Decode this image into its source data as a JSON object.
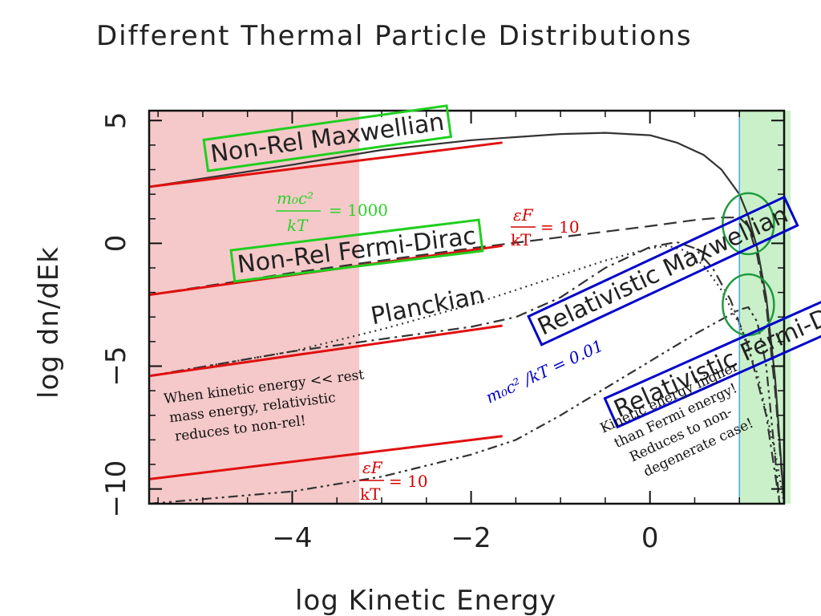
{
  "chart_data": {
    "type": "line",
    "title": "Different Thermal Particle Distributions",
    "xlabel": "log Kinetic Energy",
    "ylabel": "log dn/dEk",
    "xlim": [
      -5.6,
      1.5
    ],
    "ylim": [
      -10.6,
      5.4
    ],
    "x_ticks": [
      -4,
      -2,
      0
    ],
    "x_tick_labels": [
      "−4",
      "−2",
      "0"
    ],
    "y_ticks": [
      5,
      0,
      -5,
      -10
    ],
    "y_tick_labels": [
      "5",
      "0",
      "−5",
      "−10"
    ],
    "grid": false,
    "series": [
      {
        "name": "Non-Rel Maxwellian",
        "style": "solid",
        "x": [
          -5.6,
          -4,
          -3,
          -2,
          -1,
          -0.5,
          0,
          0.3,
          0.6,
          0.8,
          1.0,
          1.1,
          1.2,
          1.3,
          1.4,
          1.5
        ],
        "y": [
          2.3,
          3.2,
          3.8,
          4.2,
          4.45,
          4.5,
          4.4,
          4.1,
          3.6,
          3.0,
          2.0,
          1.1,
          -0.2,
          -2.2,
          -5.5,
          -10.6
        ]
      },
      {
        "name": "Non-Rel Fermi-Dirac",
        "style": "dashed",
        "x": [
          -5.6,
          -4,
          -3,
          -2,
          -1,
          0,
          0.5,
          0.8,
          1.0,
          1.1,
          1.2,
          1.3,
          1.4,
          1.5
        ],
        "y": [
          -2.1,
          -1.2,
          -0.7,
          -0.2,
          0.25,
          0.7,
          0.95,
          1.05,
          1.05,
          0.7,
          -0.5,
          -2.5,
          -6,
          -10.6
        ]
      },
      {
        "name": "Planckian",
        "style": "dotted",
        "x": [
          -5.6,
          -4,
          -3,
          -2,
          -1,
          -0.5,
          0,
          0.2,
          0.4,
          0.6,
          0.8,
          1.0,
          1.2,
          1.4,
          1.5
        ],
        "y": [
          -5.4,
          -4.4,
          -3.5,
          -2.5,
          -1.3,
          -0.7,
          -0.2,
          -0.1,
          -0.3,
          -0.9,
          -1.9,
          -3.3,
          -5.3,
          -8.5,
          -10.6
        ]
      },
      {
        "name": "Relativistic Maxwellian",
        "style": "dashdot",
        "x": [
          -5.6,
          -4,
          -3,
          -2,
          -1.5,
          -1,
          -0.5,
          0,
          0.3,
          0.5,
          0.7,
          0.9,
          1.1,
          1.3,
          1.45
        ],
        "y": [
          -5.4,
          -4.4,
          -3.9,
          -3.4,
          -3.0,
          -2.2,
          -1.0,
          -0.15,
          0.05,
          -0.2,
          -1.0,
          -2.3,
          -4.2,
          -7.0,
          -10.6
        ]
      },
      {
        "name": "Relativistic Fermi-Dirac",
        "style": "dashdotdot",
        "x": [
          -5.6,
          -4,
          -3,
          -2,
          -1.5,
          -1,
          -0.5,
          0,
          0.5,
          0.8,
          1.0,
          1.1,
          1.2,
          1.3,
          1.45
        ],
        "y": [
          -10.6,
          -10.1,
          -9.5,
          -8.6,
          -8.0,
          -7.0,
          -5.9,
          -4.8,
          -3.7,
          -3.1,
          -2.7,
          -2.6,
          -3.2,
          -5.0,
          -10.6
        ]
      }
    ],
    "asymptotes": [
      {
        "x": [
          -5.6,
          -1.65
        ],
        "y": [
          2.3,
          4.1
        ]
      },
      {
        "x": [
          -5.6,
          -1.65
        ],
        "y": [
          -2.1,
          -0.1
        ]
      },
      {
        "x": [
          -5.6,
          -1.65
        ],
        "y": [
          -5.4,
          -3.35
        ]
      },
      {
        "x": [
          -5.6,
          -1.65
        ],
        "y": [
          -9.6,
          -7.85
        ]
      }
    ],
    "regions": [
      {
        "type": "nonrelativistic",
        "x": [
          -5.6,
          -3.25
        ],
        "color": "#f5c9c9"
      },
      {
        "type": "nondegenerate",
        "x": [
          1.0,
          1.5
        ],
        "color": "#c9f0c9"
      }
    ],
    "vline": {
      "x": 1.0,
      "color": "#4aa7e8"
    },
    "circles": [
      {
        "x": 1.1,
        "y": 0.8
      },
      {
        "x": 1.1,
        "y": -2.5
      }
    ],
    "curve_labels": [
      {
        "text": "Non-Rel Maxwellian",
        "x": -4.9,
        "y": 3.3,
        "angle": -8,
        "box": "#1fcf1f"
      },
      {
        "text": "Non-Rel Fermi-Dirac",
        "x": -4.6,
        "y": -1.2,
        "angle": -7,
        "box": "#1fcf1f"
      },
      {
        "text": "Planckian",
        "x": -3.1,
        "y": -3.3,
        "angle": -11,
        "box": ""
      },
      {
        "text": "Relativistic Maxwellian",
        "x": -1.2,
        "y": -3.75,
        "angle": -25,
        "box": "#0000cc"
      },
      {
        "text": "Relativistic Fermi-Dirac",
        "x": -0.35,
        "y": -7.1,
        "angle": -24,
        "box": "#0000cc"
      }
    ],
    "annotations": {
      "rest_mass_ratio": {
        "numerator": "m₀c²",
        "denominator": "kT",
        "rhs": "= 1000",
        "color": "#2bd12b"
      },
      "fermi_ratio_top": {
        "numerator": "εF",
        "denominator": "kT",
        "rhs": "= 10",
        "color": "#d40000"
      },
      "fermi_ratio_bottom": {
        "numerator": "εF",
        "denominator": "kT",
        "rhs": "= 10",
        "color": "#d40000"
      },
      "rel_ratio": {
        "text": "m₀c² /kT = 0.01",
        "color": "#0000cc"
      },
      "note_left": [
        "When kinetic energy << rest",
        "mass energy, relativistic",
        "reduces to non-rel!"
      ],
      "note_right": [
        "Kinetic energy higher",
        "than Fermi energy!",
        "Reduces to non-",
        "degenerate case!"
      ]
    }
  }
}
